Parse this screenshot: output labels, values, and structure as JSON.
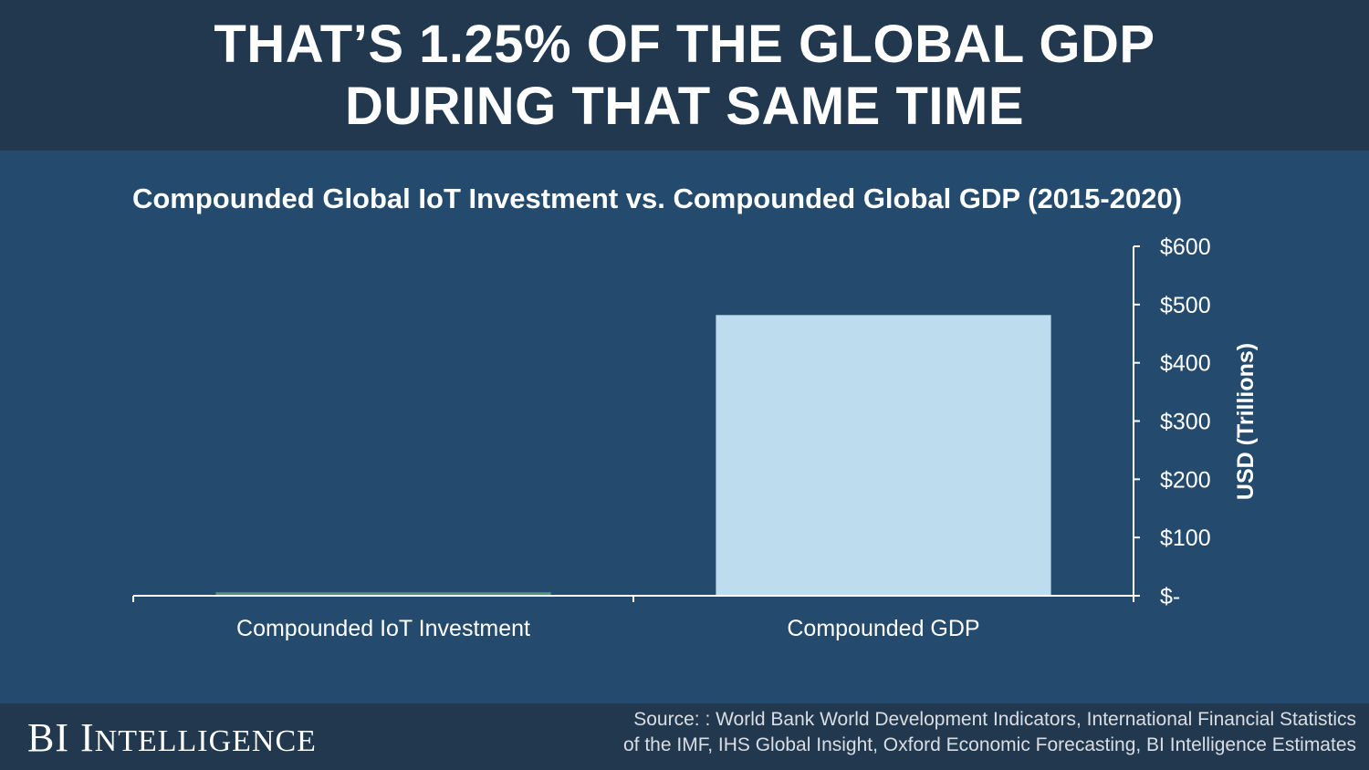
{
  "header": {
    "line1": "THAT’S 1.25% OF THE GLOBAL GDP",
    "line2": "DURING THAT SAME TIME"
  },
  "colors": {
    "background": "#244a6d",
    "header_bg": "#22384f",
    "iot_bar": "#4c9a6e",
    "gdp_bar": "#bddcee",
    "axis": "#ffffff"
  },
  "chart_data": {
    "type": "bar",
    "title": "Compounded Global IoT Investment vs. Compounded Global GDP (2015-2020)",
    "categories": [
      "Compounded  IoT Investment",
      "Compounded  GDP"
    ],
    "values": [
      6,
      482
    ],
    "ylabel": "USD (Trillions)",
    "ylim": [
      0,
      600
    ],
    "yticks": [
      0,
      100,
      200,
      300,
      400,
      500,
      600
    ],
    "ytick_labels": [
      "$-",
      "$100",
      "$200",
      "$300",
      "$400",
      "$500",
      "$600"
    ],
    "yaxis_side": "right",
    "grid": false
  },
  "footer": {
    "brand_bi": "BI",
    "brand_intelligence": "Intelligence",
    "source_line1": "Source: : World Bank World Development Indicators, International Financial Statistics",
    "source_line2": "of the IMF, IHS Global Insight, Oxford Economic Forecasting, BI Intelligence Estimates"
  }
}
